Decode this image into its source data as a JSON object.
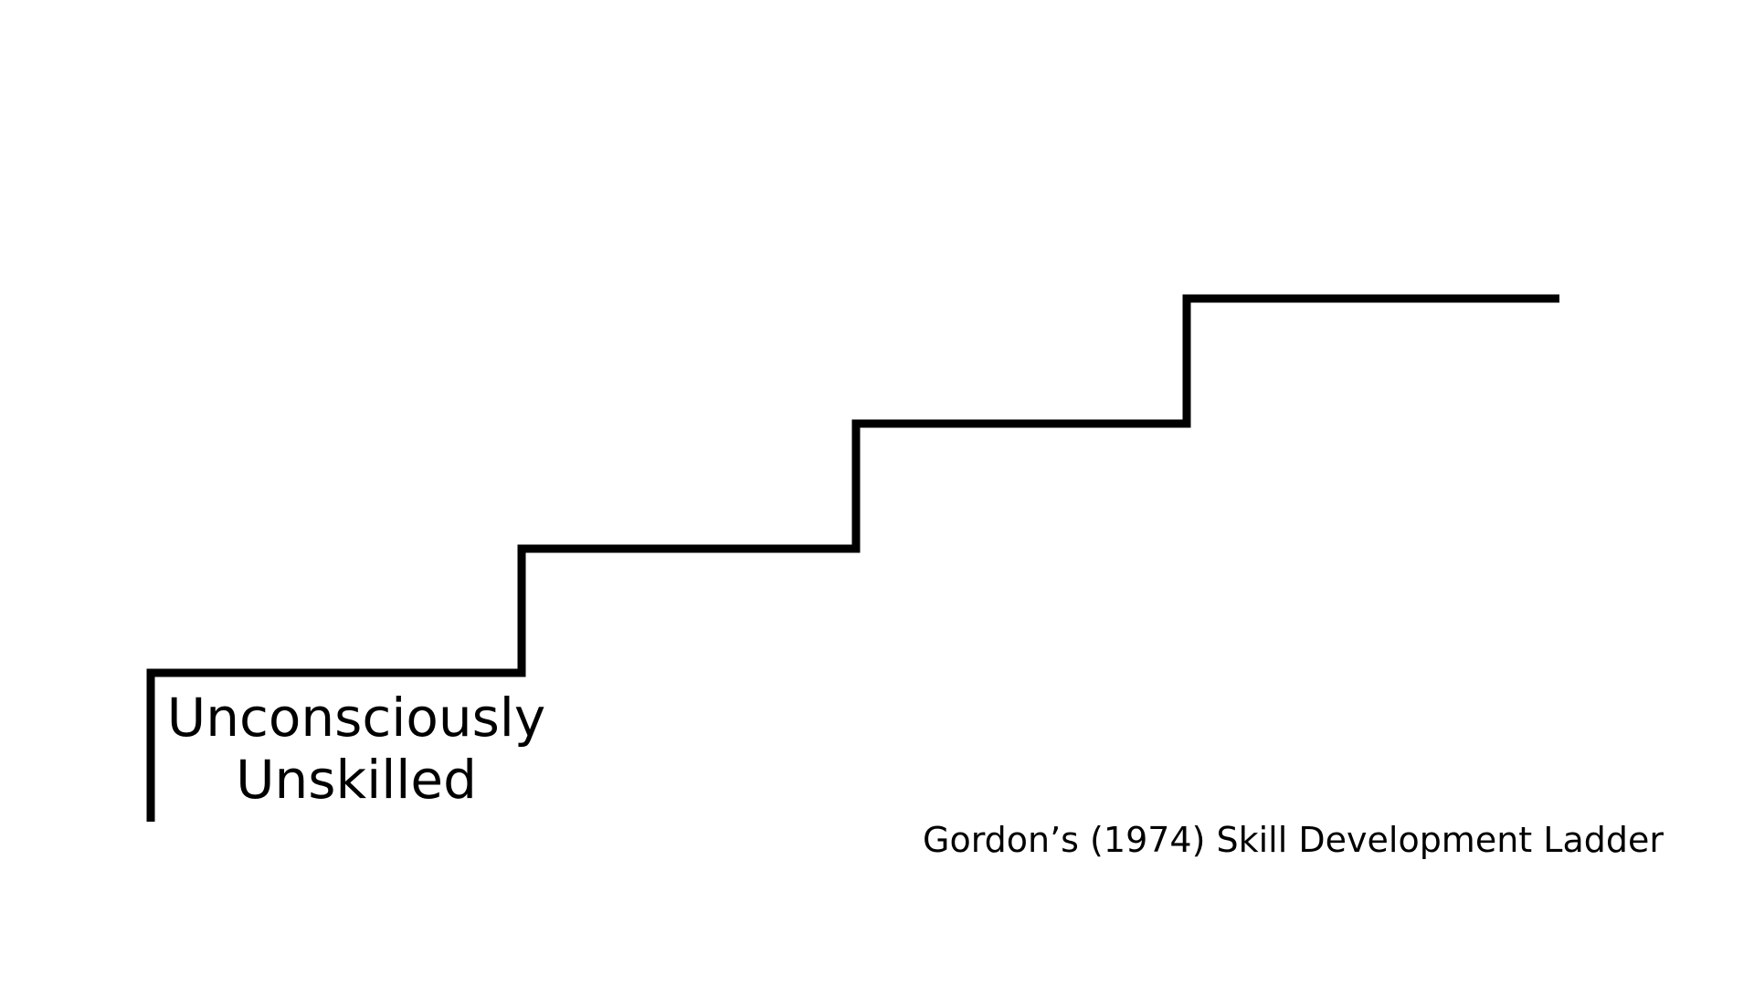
{
  "diagram": {
    "stroke_color": "#000000",
    "background_color": "#ffffff",
    "steps": [
      {
        "index": 1,
        "label_lines": [
          "Unconsciously",
          "Unskilled"
        ]
      },
      {
        "index": 2,
        "label_lines": []
      },
      {
        "index": 3,
        "label_lines": []
      },
      {
        "index": 4,
        "label_lines": []
      }
    ],
    "caption": "Gordon’s (1974) Skill Development Ladder"
  }
}
